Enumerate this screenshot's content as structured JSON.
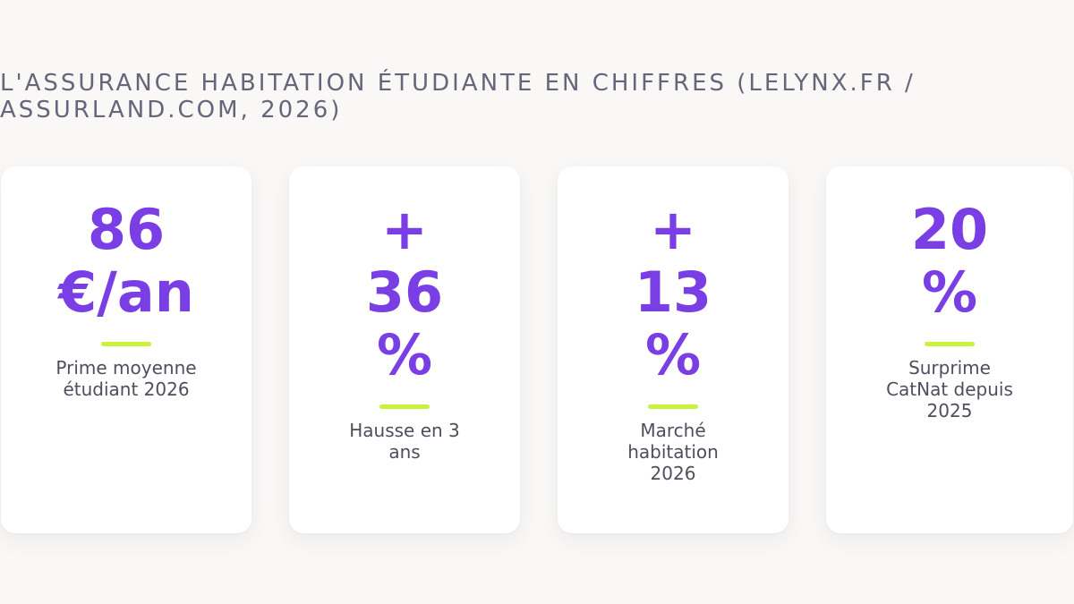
{
  "title": "L'ASSURANCE HABITATION ÉTUDIANTE EN CHIFFRES (LELYNX.FR / ASSURLAND.COM, 2026)",
  "cards": [
    {
      "value_lines": [
        "86",
        "€/an"
      ],
      "label_lines": [
        "Prime moyenne",
        "étudiant 2026"
      ]
    },
    {
      "value_lines": [
        "+",
        "36",
        "%"
      ],
      "label_lines": [
        "Hausse en 3",
        "ans"
      ]
    },
    {
      "value_lines": [
        "+",
        "13",
        "%"
      ],
      "label_lines": [
        "Marché",
        "habitation",
        "2026"
      ]
    },
    {
      "value_lines": [
        "20",
        "%"
      ],
      "label_lines": [
        "Surprime",
        "CatNat depuis",
        "2025"
      ]
    }
  ],
  "colors": {
    "background": "#f9f8f6",
    "accent_purple": "#7a3fe4",
    "accent_lime": "#c9f23a",
    "title_gray": "#66657a",
    "label_gray": "#4f4e5e"
  }
}
